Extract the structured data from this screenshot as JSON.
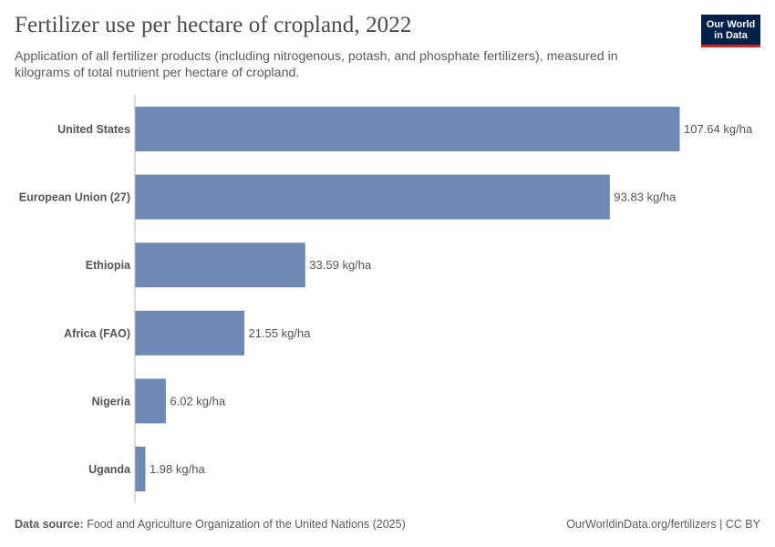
{
  "header": {
    "title": "Fertilizer use per hectare of cropland, 2022",
    "subtitle": "Application of all fertilizer products (including nitrogenous, potash, and phosphate fertilizers), measured in kilograms of total nutrient per hectare of cropland."
  },
  "logo": {
    "line1": "Our World",
    "line2": "in Data",
    "bg_color": "#002147",
    "accent_color": "#ce261e"
  },
  "footer": {
    "source_label": "Data source:",
    "source_text": "Food and Agriculture Organization of the United Nations (2025)",
    "link_text": "OurWorldinData.org/fertilizers | CC BY"
  },
  "chart_data": {
    "type": "bar",
    "orientation": "horizontal",
    "categories": [
      "United States",
      "European Union (27)",
      "Ethiopia",
      "Africa (FAO)",
      "Nigeria",
      "Uganda"
    ],
    "values": [
      107.64,
      93.83,
      33.59,
      21.55,
      6.02,
      1.98
    ],
    "value_labels": [
      "107.64 kg/ha",
      "93.83 kg/ha",
      "33.59 kg/ha",
      "21.55 kg/ha",
      "6.02 kg/ha",
      "1.98 kg/ha"
    ],
    "bar_color": "#6f89b2",
    "grid": false,
    "xlim": [
      0,
      107.64
    ]
  }
}
